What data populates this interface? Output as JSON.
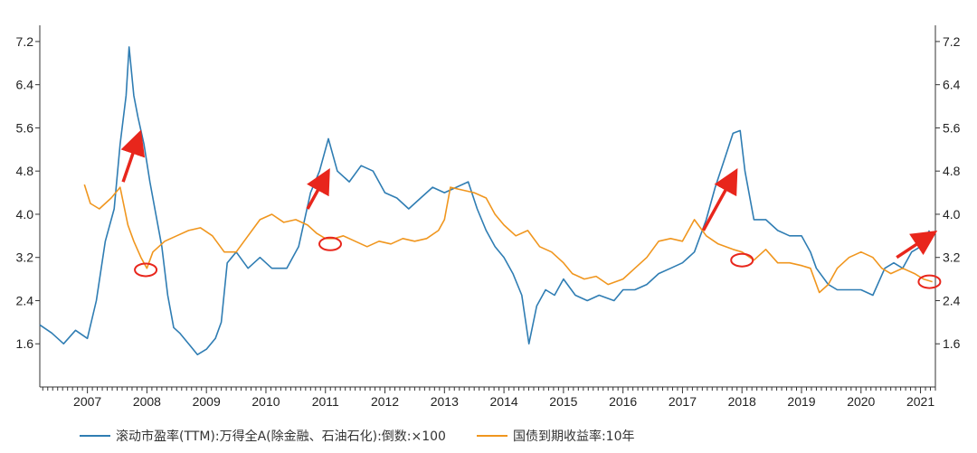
{
  "chart_data": {
    "type": "line",
    "title": "",
    "xlabel": "",
    "ylabel": "",
    "x_tick_labels": [
      "2007",
      "2008",
      "2009",
      "2010",
      "2011",
      "2012",
      "2013",
      "2014",
      "2015",
      "2016",
      "2017",
      "2018",
      "2019",
      "2020",
      "2021"
    ],
    "y_tick_labels": [
      "1.6",
      "2.4",
      "3.2",
      "4.0",
      "4.8",
      "5.6",
      "6.4",
      "7.2"
    ],
    "y_ticks": [
      1.6,
      2.4,
      3.2,
      4.0,
      4.8,
      5.6,
      6.4,
      7.2
    ],
    "ylim": [
      0.8,
      7.5
    ],
    "xlim": [
      2006.2,
      2021.25
    ],
    "legend_position": "bottom",
    "series": [
      {
        "name": "滚动市盈率(TTM):万得全A(除金融、石油石化):倒数:×100",
        "color": "#2f7db3",
        "points": [
          [
            2006.2,
            1.95
          ],
          [
            2006.4,
            1.8
          ],
          [
            2006.6,
            1.6
          ],
          [
            2006.8,
            1.85
          ],
          [
            2007.0,
            1.7
          ],
          [
            2007.15,
            2.4
          ],
          [
            2007.3,
            3.5
          ],
          [
            2007.45,
            4.1
          ],
          [
            2007.55,
            5.3
          ],
          [
            2007.65,
            6.2
          ],
          [
            2007.7,
            7.1
          ],
          [
            2007.78,
            6.2
          ],
          [
            2007.85,
            5.8
          ],
          [
            2007.95,
            5.3
          ],
          [
            2008.05,
            4.6
          ],
          [
            2008.15,
            4.0
          ],
          [
            2008.25,
            3.4
          ],
          [
            2008.35,
            2.5
          ],
          [
            2008.45,
            1.9
          ],
          [
            2008.55,
            1.8
          ],
          [
            2008.7,
            1.6
          ],
          [
            2008.85,
            1.4
          ],
          [
            2009.0,
            1.5
          ],
          [
            2009.15,
            1.7
          ],
          [
            2009.25,
            2.0
          ],
          [
            2009.35,
            3.1
          ],
          [
            2009.5,
            3.3
          ],
          [
            2009.7,
            3.0
          ],
          [
            2009.9,
            3.2
          ],
          [
            2010.1,
            3.0
          ],
          [
            2010.35,
            3.0
          ],
          [
            2010.55,
            3.4
          ],
          [
            2010.75,
            4.4
          ],
          [
            2010.9,
            4.8
          ],
          [
            2011.05,
            5.4
          ],
          [
            2011.2,
            4.8
          ],
          [
            2011.4,
            4.6
          ],
          [
            2011.6,
            4.9
          ],
          [
            2011.8,
            4.8
          ],
          [
            2012.0,
            4.4
          ],
          [
            2012.2,
            4.3
          ],
          [
            2012.4,
            4.1
          ],
          [
            2012.6,
            4.3
          ],
          [
            2012.8,
            4.5
          ],
          [
            2013.0,
            4.4
          ],
          [
            2013.2,
            4.5
          ],
          [
            2013.4,
            4.6
          ],
          [
            2013.55,
            4.1
          ],
          [
            2013.7,
            3.7
          ],
          [
            2013.85,
            3.4
          ],
          [
            2014.0,
            3.2
          ],
          [
            2014.15,
            2.9
          ],
          [
            2014.3,
            2.5
          ],
          [
            2014.42,
            1.6
          ],
          [
            2014.55,
            2.3
          ],
          [
            2014.7,
            2.6
          ],
          [
            2014.85,
            2.5
          ],
          [
            2015.0,
            2.8
          ],
          [
            2015.2,
            2.5
          ],
          [
            2015.4,
            2.4
          ],
          [
            2015.6,
            2.5
          ],
          [
            2015.85,
            2.4
          ],
          [
            2016.0,
            2.6
          ],
          [
            2016.2,
            2.6
          ],
          [
            2016.4,
            2.7
          ],
          [
            2016.6,
            2.9
          ],
          [
            2016.8,
            3.0
          ],
          [
            2017.0,
            3.1
          ],
          [
            2017.2,
            3.3
          ],
          [
            2017.4,
            3.9
          ],
          [
            2017.55,
            4.5
          ],
          [
            2017.7,
            5.0
          ],
          [
            2017.85,
            5.5
          ],
          [
            2017.97,
            5.55
          ],
          [
            2018.05,
            4.8
          ],
          [
            2018.2,
            3.9
          ],
          [
            2018.4,
            3.9
          ],
          [
            2018.6,
            3.7
          ],
          [
            2018.8,
            3.6
          ],
          [
            2019.0,
            3.6
          ],
          [
            2019.15,
            3.3
          ],
          [
            2019.25,
            3.0
          ],
          [
            2019.45,
            2.7
          ],
          [
            2019.6,
            2.6
          ],
          [
            2019.8,
            2.6
          ],
          [
            2020.0,
            2.6
          ],
          [
            2020.2,
            2.5
          ],
          [
            2020.4,
            3.0
          ],
          [
            2020.55,
            3.1
          ],
          [
            2020.7,
            3.0
          ],
          [
            2020.85,
            3.3
          ],
          [
            2021.0,
            3.4
          ],
          [
            2021.15,
            3.7
          ]
        ]
      },
      {
        "name": "国债到期收益率:10年",
        "color": "#f0961e",
        "points": [
          [
            2006.95,
            4.55
          ],
          [
            2007.05,
            4.2
          ],
          [
            2007.2,
            4.1
          ],
          [
            2007.4,
            4.3
          ],
          [
            2007.55,
            4.5
          ],
          [
            2007.68,
            3.8
          ],
          [
            2007.78,
            3.5
          ],
          [
            2007.9,
            3.2
          ],
          [
            2008.0,
            3.0
          ],
          [
            2008.1,
            3.3
          ],
          [
            2008.3,
            3.5
          ],
          [
            2008.5,
            3.6
          ],
          [
            2008.7,
            3.7
          ],
          [
            2008.9,
            3.75
          ],
          [
            2009.1,
            3.6
          ],
          [
            2009.3,
            3.3
          ],
          [
            2009.5,
            3.3
          ],
          [
            2009.7,
            3.6
          ],
          [
            2009.9,
            3.9
          ],
          [
            2010.1,
            4.0
          ],
          [
            2010.3,
            3.85
          ],
          [
            2010.5,
            3.9
          ],
          [
            2010.7,
            3.8
          ],
          [
            2010.85,
            3.65
          ],
          [
            2011.0,
            3.55
          ],
          [
            2011.15,
            3.55
          ],
          [
            2011.3,
            3.6
          ],
          [
            2011.5,
            3.5
          ],
          [
            2011.7,
            3.4
          ],
          [
            2011.9,
            3.5
          ],
          [
            2012.1,
            3.45
          ],
          [
            2012.3,
            3.55
          ],
          [
            2012.5,
            3.5
          ],
          [
            2012.7,
            3.55
          ],
          [
            2012.9,
            3.7
          ],
          [
            2013.0,
            3.9
          ],
          [
            2013.1,
            4.5
          ],
          [
            2013.3,
            4.45
          ],
          [
            2013.5,
            4.4
          ],
          [
            2013.7,
            4.3
          ],
          [
            2013.85,
            4.0
          ],
          [
            2014.0,
            3.8
          ],
          [
            2014.2,
            3.6
          ],
          [
            2014.4,
            3.7
          ],
          [
            2014.6,
            3.4
          ],
          [
            2014.8,
            3.3
          ],
          [
            2015.0,
            3.1
          ],
          [
            2015.15,
            2.9
          ],
          [
            2015.35,
            2.8
          ],
          [
            2015.55,
            2.85
          ],
          [
            2015.75,
            2.7
          ],
          [
            2016.0,
            2.8
          ],
          [
            2016.2,
            3.0
          ],
          [
            2016.4,
            3.2
          ],
          [
            2016.6,
            3.5
          ],
          [
            2016.8,
            3.55
          ],
          [
            2017.0,
            3.5
          ],
          [
            2017.2,
            3.9
          ],
          [
            2017.4,
            3.6
          ],
          [
            2017.6,
            3.45
          ],
          [
            2017.85,
            3.35
          ],
          [
            2018.0,
            3.3
          ],
          [
            2018.2,
            3.15
          ],
          [
            2018.4,
            3.35
          ],
          [
            2018.6,
            3.1
          ],
          [
            2018.8,
            3.1
          ],
          [
            2019.0,
            3.05
          ],
          [
            2019.15,
            3.0
          ],
          [
            2019.3,
            2.55
          ],
          [
            2019.45,
            2.7
          ],
          [
            2019.6,
            3.0
          ],
          [
            2019.8,
            3.2
          ],
          [
            2020.0,
            3.3
          ],
          [
            2020.2,
            3.2
          ],
          [
            2020.35,
            3.0
          ],
          [
            2020.5,
            2.9
          ],
          [
            2020.7,
            3.0
          ],
          [
            2020.9,
            2.9
          ],
          [
            2021.05,
            2.8
          ],
          [
            2021.2,
            2.75
          ]
        ]
      }
    ],
    "annotations": [
      {
        "type": "arrow",
        "from": [
          2007.6,
          4.6
        ],
        "to": [
          2007.85,
          5.4
        ],
        "color": "#e8261c"
      },
      {
        "type": "arrow",
        "from": [
          2010.7,
          4.1
        ],
        "to": [
          2011.0,
          4.7
        ],
        "color": "#e8261c"
      },
      {
        "type": "arrow",
        "from": [
          2017.35,
          3.7
        ],
        "to": [
          2017.85,
          4.7
        ],
        "color": "#e8261c"
      },
      {
        "type": "arrow",
        "from": [
          2020.6,
          3.2
        ],
        "to": [
          2021.15,
          3.6
        ],
        "color": "#e8261c"
      },
      {
        "type": "ellipse",
        "center": [
          2007.98,
          2.97
        ],
        "color": "#e8261c"
      },
      {
        "type": "ellipse",
        "center": [
          2011.08,
          3.45
        ],
        "color": "#e8261c"
      },
      {
        "type": "ellipse",
        "center": [
          2018.0,
          3.15
        ],
        "color": "#e8261c"
      },
      {
        "type": "ellipse",
        "center": [
          2021.15,
          2.75
        ],
        "color": "#e8261c"
      }
    ]
  }
}
